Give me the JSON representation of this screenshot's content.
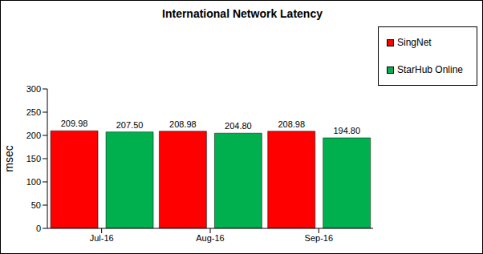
{
  "chart_data": {
    "type": "bar",
    "title": "International Network Latency",
    "y_label": "msec",
    "categories": [
      "Jul-16",
      "Aug-16",
      "Sep-16"
    ],
    "series": [
      {
        "name": "SingNet",
        "color": "#ff0000",
        "values": [
          209.98,
          208.98,
          208.98
        ],
        "value_labels": [
          "209.98",
          "208.98",
          "208.98"
        ]
      },
      {
        "name": "StarHub Online",
        "color": "#00b04f",
        "values": [
          207.5,
          204.8,
          194.8
        ],
        "value_labels": [
          "207.50",
          "204.80",
          "194.80"
        ]
      }
    ],
    "ylim": [
      0,
      300
    ],
    "yticks": [
      0,
      50,
      100,
      150,
      200,
      250,
      300
    ],
    "grid": false,
    "legend": "right",
    "data_labels": true
  }
}
